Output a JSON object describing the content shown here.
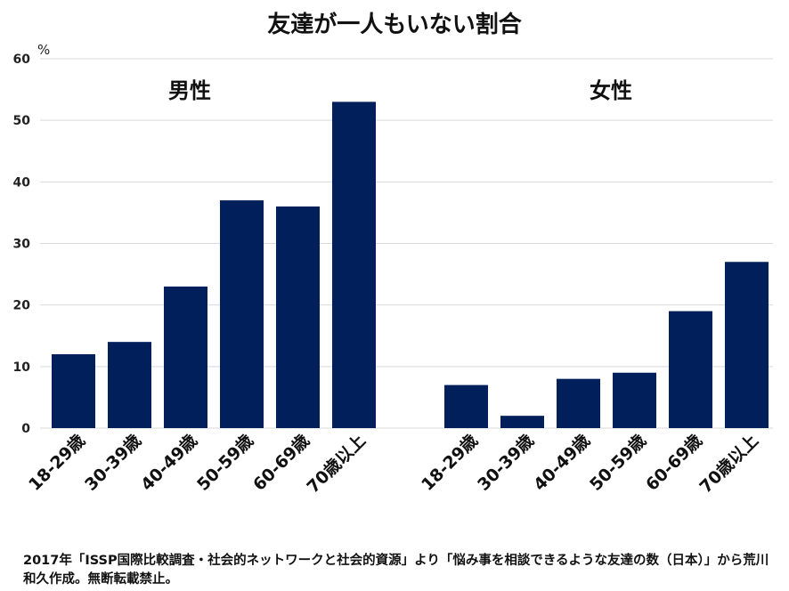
{
  "chart_data": {
    "type": "bar",
    "title": "友達が一人もいない割合",
    "yunit": "%",
    "ylim": [
      0,
      60
    ],
    "yticks": [
      "0",
      "10",
      "20",
      "30",
      "40",
      "50",
      "60"
    ],
    "grid": true,
    "categories": [
      "18-29歳",
      "30-39歳",
      "40-49歳",
      "50-59歳",
      "60-69歳",
      "70歳以上"
    ],
    "series": [
      {
        "name": "男性",
        "values": [
          12,
          14,
          23,
          37,
          36,
          53
        ],
        "color": "#001f5b"
      },
      {
        "name": "女性",
        "values": [
          7,
          2,
          8,
          9,
          19,
          27
        ],
        "color": "#001f5b"
      }
    ]
  },
  "source_note": "2017年「ISSP国際比較調査・社会的ネットワークと社会的資源」より「悩み事を相談できるような友達の数（日本）」から荒川和久作成。無断転載禁止。"
}
